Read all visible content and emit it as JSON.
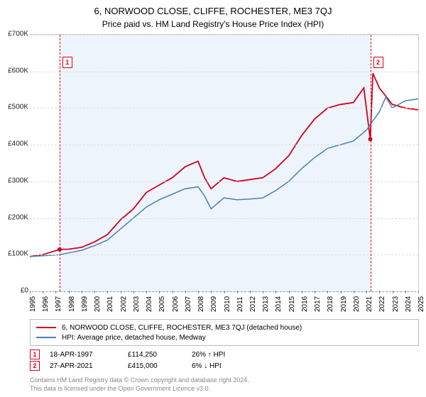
{
  "title": "6, NORWOOD CLOSE, CLIFFE, ROCHESTER, ME3 7QJ",
  "subtitle": "Price paid vs. HM Land Registry's House Price Index (HPI)",
  "chart": {
    "type": "line",
    "background_color": "#ffffff",
    "grid_color": "#dddddd",
    "axis_color": "#888888",
    "label_fontsize": 10,
    "title_fontsize": 13,
    "subtitle_fontsize": 12,
    "ylim": [
      0,
      700000
    ],
    "ytick_step": 100000,
    "yticks": [
      "£0",
      "£100K",
      "£200K",
      "£300K",
      "£400K",
      "£500K",
      "£600K",
      "£700K"
    ],
    "xlim": [
      1995,
      2025
    ],
    "xticks": [
      1995,
      1996,
      1997,
      1998,
      1999,
      2000,
      2001,
      2002,
      2003,
      2004,
      2005,
      2006,
      2007,
      2008,
      2009,
      2010,
      2011,
      2012,
      2013,
      2014,
      2015,
      2016,
      2017,
      2018,
      2019,
      2020,
      2021,
      2022,
      2023,
      2024,
      2025
    ],
    "shade_from": 1997.3,
    "shade_to": 2021.3,
    "shade_color": "#eef4fb",
    "series": [
      {
        "name": "property",
        "color": "#d4001a",
        "line_width": 1.8,
        "points": [
          [
            1995,
            95000
          ],
          [
            1996,
            100000
          ],
          [
            1997.3,
            114250
          ],
          [
            1998,
            115000
          ],
          [
            1999,
            120000
          ],
          [
            2000,
            135000
          ],
          [
            2001,
            155000
          ],
          [
            2002,
            195000
          ],
          [
            2003,
            225000
          ],
          [
            2004,
            270000
          ],
          [
            2005,
            290000
          ],
          [
            2006,
            310000
          ],
          [
            2007,
            340000
          ],
          [
            2008,
            355000
          ],
          [
            2008.5,
            310000
          ],
          [
            2009,
            280000
          ],
          [
            2010,
            310000
          ],
          [
            2011,
            300000
          ],
          [
            2012,
            305000
          ],
          [
            2013,
            310000
          ],
          [
            2014,
            335000
          ],
          [
            2015,
            370000
          ],
          [
            2016,
            425000
          ],
          [
            2017,
            470000
          ],
          [
            2018,
            500000
          ],
          [
            2019,
            510000
          ],
          [
            2020,
            515000
          ],
          [
            2020.8,
            555000
          ],
          [
            2021.3,
            415000
          ],
          [
            2021.5,
            595000
          ],
          [
            2022,
            555000
          ],
          [
            2023,
            510000
          ],
          [
            2024,
            500000
          ],
          [
            2025,
            495000
          ]
        ]
      },
      {
        "name": "hpi",
        "color": "#4a7fb5",
        "line_width": 1.5,
        "points": [
          [
            1995,
            95000
          ],
          [
            1996,
            97000
          ],
          [
            1997.3,
            100000
          ],
          [
            1998,
            105000
          ],
          [
            1999,
            112000
          ],
          [
            2000,
            125000
          ],
          [
            2001,
            140000
          ],
          [
            2002,
            170000
          ],
          [
            2003,
            200000
          ],
          [
            2004,
            230000
          ],
          [
            2005,
            250000
          ],
          [
            2006,
            265000
          ],
          [
            2007,
            280000
          ],
          [
            2008,
            285000
          ],
          [
            2008.5,
            260000
          ],
          [
            2009,
            225000
          ],
          [
            2010,
            255000
          ],
          [
            2011,
            250000
          ],
          [
            2012,
            252000
          ],
          [
            2013,
            255000
          ],
          [
            2014,
            275000
          ],
          [
            2015,
            300000
          ],
          [
            2016,
            335000
          ],
          [
            2017,
            365000
          ],
          [
            2018,
            390000
          ],
          [
            2019,
            400000
          ],
          [
            2020,
            410000
          ],
          [
            2021,
            440000
          ],
          [
            2022,
            490000
          ],
          [
            2022.5,
            530000
          ],
          [
            2023,
            500000
          ],
          [
            2024,
            520000
          ],
          [
            2025,
            525000
          ]
        ]
      }
    ],
    "markers": [
      {
        "n": "1",
        "x": 1997.3,
        "y": 640000,
        "color": "#d4001a",
        "point_y": 114250
      },
      {
        "n": "2",
        "x": 2021.3,
        "y": 640000,
        "color": "#d4001a",
        "point_y": 415000
      }
    ]
  },
  "legend": [
    {
      "color": "#d4001a",
      "label": "6, NORWOOD CLOSE, CLIFFE, ROCHESTER, ME3 7QJ (detached house)"
    },
    {
      "color": "#4a7fb5",
      "label": "HPI: Average price, detached house, Medway"
    }
  ],
  "data_rows": [
    {
      "n": "1",
      "color": "#d4001a",
      "date": "18-APR-1997",
      "price": "£114,250",
      "pct": "26% ↑ HPI"
    },
    {
      "n": "2",
      "color": "#d4001a",
      "date": "27-APR-2021",
      "price": "£415,000",
      "pct": "6% ↓ HPI"
    }
  ],
  "footer": {
    "line1": "Contains HM Land Registry data © Crown copyright and database right 2024.",
    "line2": "This data is licensed under the Open Government Licence v3.0."
  }
}
